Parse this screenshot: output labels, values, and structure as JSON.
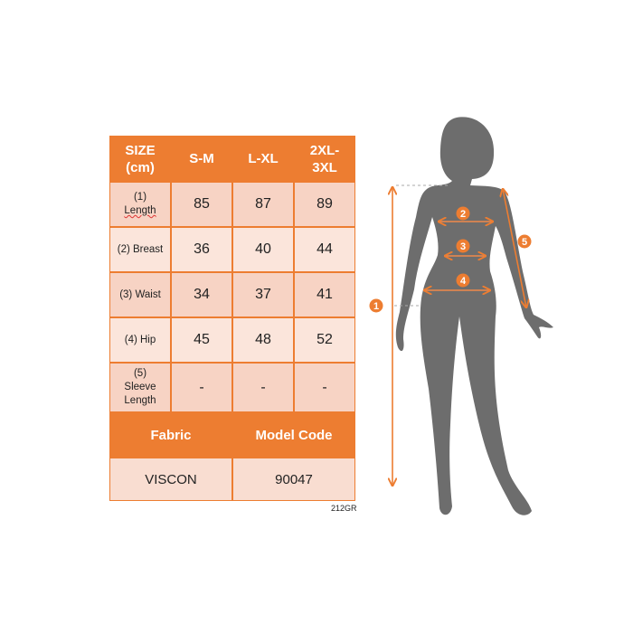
{
  "table": {
    "header": [
      "SIZE (cm)",
      "S-M",
      "L-XL",
      "2XL-3XL"
    ],
    "header_lines": [
      [
        "SIZE",
        "(cm)"
      ],
      [
        "S-M"
      ],
      [
        "L-XL"
      ],
      [
        "2XL-",
        "3XL"
      ]
    ],
    "rows": [
      {
        "label_lines": [
          "(1)",
          "Length"
        ],
        "values": [
          "85",
          "87",
          "89"
        ]
      },
      {
        "label_lines": [
          "(2) Breast"
        ],
        "values": [
          "36",
          "40",
          "44"
        ]
      },
      {
        "label_lines": [
          "(3) Waist"
        ],
        "values": [
          "34",
          "37",
          "41"
        ]
      },
      {
        "label_lines": [
          "(4) Hip"
        ],
        "values": [
          "45",
          "48",
          "52"
        ]
      },
      {
        "label_lines": [
          "(5)",
          "Sleeve",
          "Length"
        ],
        "values": [
          "-",
          "-",
          "-"
        ]
      }
    ],
    "footer_headers": [
      "Fabric",
      "Model Code"
    ],
    "footer_values": [
      "VISCON",
      "90047"
    ]
  },
  "product_code": "212GR",
  "figure": {
    "markers": [
      "1",
      "2",
      "3",
      "4",
      "5"
    ]
  },
  "colors": {
    "accent": "#ED7D31",
    "silhouette": "#6D6D6D",
    "cell_dark": "#F7D3C4",
    "cell_light": "#FBE5DB"
  }
}
